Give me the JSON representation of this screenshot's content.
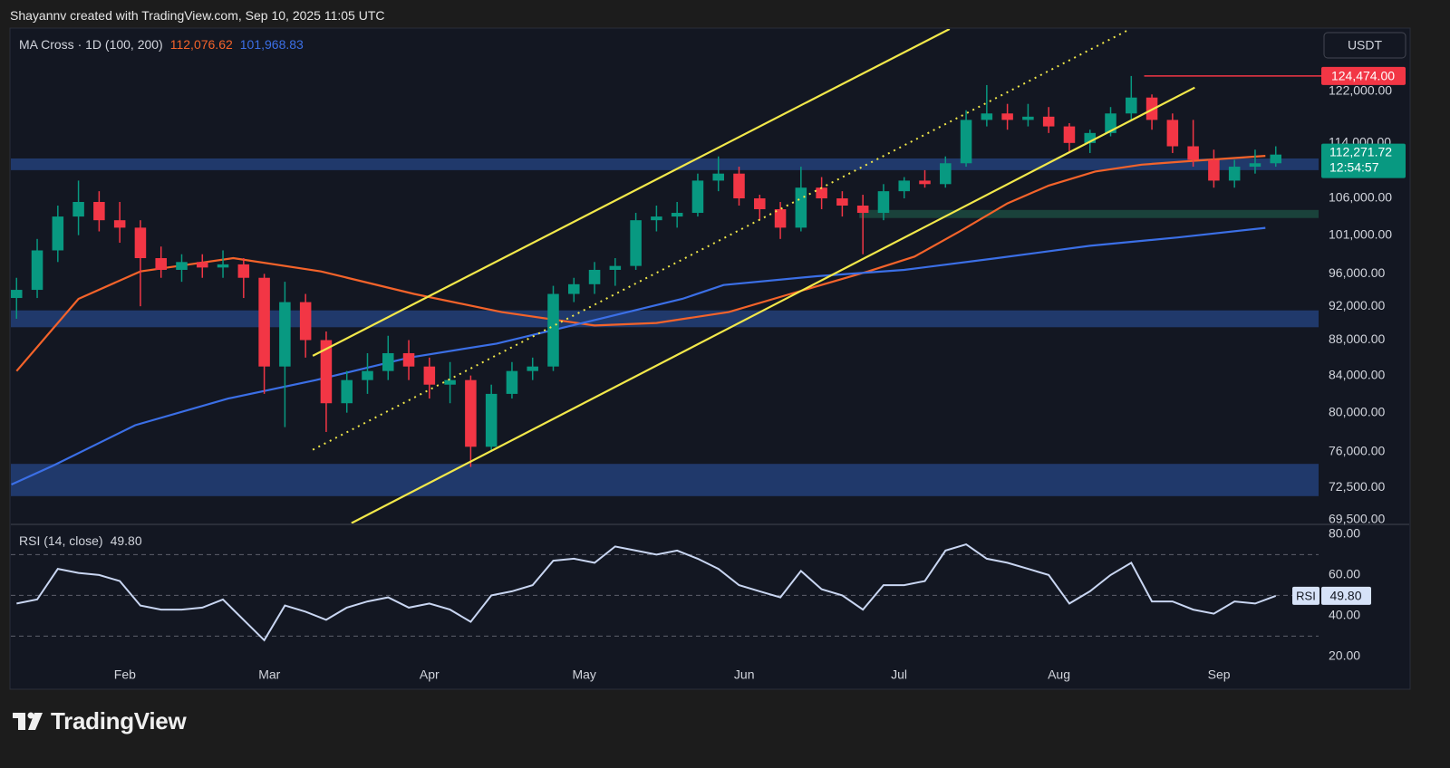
{
  "header": {
    "credit": "Shayannv created with TradingView.com, Sep 10, 2025 11:05 UTC",
    "currency": "USDT"
  },
  "footer": {
    "brand": "TradingView"
  },
  "chart_data": [
    {
      "type": "candlestick",
      "indicator": "MA Cross · 1D (100, 200)",
      "log_y": true,
      "xlim": [
        8.9,
        262.3
      ],
      "xticks": [
        {
          "value": 31,
          "label": "Feb"
        },
        {
          "value": 59,
          "label": "Mar"
        },
        {
          "value": 90,
          "label": "Apr"
        },
        {
          "value": 120,
          "label": "May"
        },
        {
          "value": 151,
          "label": "Jun"
        },
        {
          "value": 181,
          "label": "Jul"
        },
        {
          "value": 212,
          "label": "Aug"
        },
        {
          "value": 243,
          "label": "Sep"
        }
      ],
      "ylim": [
        69170,
        132400
      ],
      "yticks": [
        {
          "value": 122000,
          "label": "122,000.00"
        },
        {
          "value": 114000,
          "label": "114,000.00"
        },
        {
          "value": 106000,
          "label": "106,000.00"
        },
        {
          "value": 101000,
          "label": "101,000.00"
        },
        {
          "value": 96000,
          "label": "96,000.00"
        },
        {
          "value": 92000,
          "label": "92,000.00"
        },
        {
          "value": 88000,
          "label": "88,000.00"
        },
        {
          "value": 84000,
          "label": "84,000.00"
        },
        {
          "value": 80000,
          "label": "80,000.00"
        },
        {
          "value": 76000,
          "label": "76,000.00"
        },
        {
          "value": 72500,
          "label": "72,500.00"
        },
        {
          "value": 69500,
          "label": "69,500.00"
        }
      ],
      "up_color": "#089981",
      "down_color": "#f23645",
      "candles": [
        [
          10,
          93000,
          95500,
          90500,
          94000
        ],
        [
          14,
          94000,
          100500,
          93000,
          99000
        ],
        [
          18,
          99000,
          105000,
          97500,
          103500
        ],
        [
          22,
          103500,
          108500,
          101000,
          105500
        ],
        [
          26,
          105500,
          107000,
          101500,
          103000
        ],
        [
          30,
          103000,
          105500,
          100000,
          102000
        ],
        [
          34,
          102000,
          103000,
          92000,
          98000
        ],
        [
          38,
          98000,
          99500,
          95500,
          96500
        ],
        [
          42,
          96500,
          98500,
          95000,
          97500
        ],
        [
          46,
          97500,
          98500,
          95500,
          96800
        ],
        [
          50,
          96800,
          99000,
          95500,
          97200
        ],
        [
          54,
          97200,
          98000,
          93000,
          95500
        ],
        [
          58,
          95500,
          96000,
          82000,
          85000
        ],
        [
          62,
          85000,
          95000,
          78500,
          92500
        ],
        [
          66,
          92500,
          93500,
          86000,
          88000
        ],
        [
          70,
          88000,
          89000,
          78000,
          81000
        ],
        [
          74,
          81000,
          84500,
          80000,
          83500
        ],
        [
          78,
          83500,
          86500,
          82000,
          84500
        ],
        [
          82,
          84500,
          88500,
          83500,
          86500
        ],
        [
          86,
          86500,
          88000,
          83500,
          85000
        ],
        [
          90,
          85000,
          86000,
          81500,
          83000
        ],
        [
          94,
          83000,
          85500,
          81000,
          83500
        ],
        [
          98,
          83500,
          84000,
          74500,
          76500
        ],
        [
          102,
          76500,
          83000,
          76000,
          82000
        ],
        [
          106,
          82000,
          85500,
          81500,
          84500
        ],
        [
          110,
          84500,
          86000,
          83500,
          85000
        ],
        [
          114,
          85000,
          94500,
          84500,
          93500
        ],
        [
          118,
          93500,
          95500,
          92500,
          94700
        ],
        [
          122,
          94700,
          97500,
          93500,
          96500
        ],
        [
          126,
          96500,
          98000,
          94500,
          97000
        ],
        [
          130,
          97000,
          104000,
          96500,
          103000
        ],
        [
          134,
          103000,
          105000,
          101500,
          103500
        ],
        [
          138,
          103500,
          105500,
          102000,
          104000
        ],
        [
          142,
          104000,
          109500,
          103500,
          108500
        ],
        [
          146,
          108500,
          112000,
          107000,
          109500
        ],
        [
          150,
          109500,
          110500,
          105000,
          106000
        ],
        [
          154,
          106000,
          106500,
          103000,
          104500
        ],
        [
          158,
          104500,
          105500,
          100500,
          102000
        ],
        [
          162,
          102000,
          110500,
          101500,
          107500
        ],
        [
          166,
          107500,
          109000,
          104500,
          106000
        ],
        [
          170,
          106000,
          107000,
          103500,
          105000
        ],
        [
          174,
          105000,
          106500,
          98500,
          104000
        ],
        [
          178,
          104000,
          108000,
          103000,
          107000
        ],
        [
          182,
          107000,
          109000,
          106000,
          108500
        ],
        [
          186,
          108500,
          110000,
          107500,
          108000
        ],
        [
          190,
          108000,
          112000,
          107500,
          111000
        ],
        [
          194,
          111000,
          119000,
          110500,
          117500
        ],
        [
          198,
          117500,
          123000,
          116500,
          118500
        ],
        [
          202,
          118500,
          120000,
          116000,
          117500
        ],
        [
          206,
          117500,
          120000,
          116500,
          118000
        ],
        [
          210,
          118000,
          119500,
          115500,
          116500
        ],
        [
          214,
          116500,
          117000,
          112500,
          114000
        ],
        [
          218,
          114000,
          116000,
          112500,
          115500
        ],
        [
          222,
          115500,
          119500,
          115000,
          118500
        ],
        [
          226,
          118500,
          124474,
          117500,
          121000
        ],
        [
          230,
          121000,
          121500,
          116000,
          117500
        ],
        [
          234,
          117500,
          118500,
          112500,
          113500
        ],
        [
          238,
          113500,
          117500,
          110500,
          111500
        ],
        [
          242,
          111500,
          113000,
          107500,
          108500
        ],
        [
          246,
          108500,
          111500,
          107500,
          110500
        ],
        [
          250,
          110500,
          113000,
          109500,
          111000
        ],
        [
          254,
          111000,
          113500,
          110500,
          112271.72
        ]
      ],
      "series": [
        {
          "color": "#f4632a",
          "legend_value": "112,076.62",
          "x": [
            10,
            22,
            34,
            52,
            69,
            87,
            104,
            122,
            134,
            148,
            160,
            175,
            184,
            193,
            202,
            210,
            219,
            228,
            237,
            252
          ],
          "values": [
            84500,
            92900,
            96300,
            98000,
            96300,
            93500,
            91300,
            89700,
            90000,
            91300,
            93500,
            96300,
            98200,
            101600,
            105300,
            107800,
            109800,
            110800,
            111300,
            112076.62
          ]
        },
        {
          "color": "#3b6fe6",
          "legend_value": "101,968.83",
          "x": [
            9,
            17,
            33,
            51,
            68,
            86,
            103,
            121,
            139,
            147,
            165,
            182,
            200,
            218,
            235,
            252
          ],
          "values": [
            72800,
            74600,
            78700,
            81500,
            83500,
            86000,
            87600,
            90200,
            92900,
            94600,
            95700,
            96500,
            98000,
            99600,
            100700,
            101968.83
          ]
        }
      ],
      "zones": [
        {
          "color": "#233f78",
          "range": [
            110000,
            111700
          ]
        },
        {
          "color": "#233f78",
          "range": [
            89500,
            91500
          ]
        },
        {
          "color": "#233f78",
          "range": [
            71700,
            74800
          ]
        },
        {
          "color": "#1c4a40",
          "range": [
            103300,
            104400
          ],
          "from": 173.3
        }
      ],
      "trendlines": [
        {
          "color": "#f2e84a",
          "dashed": false,
          "x": [
            67.4,
            190.8
          ],
          "y": [
            86200,
            132400
          ]
        },
        {
          "color": "#f2e84a",
          "dashed": false,
          "x": [
            74.9,
            238.3
          ],
          "y": [
            69200,
            122600
          ]
        },
        {
          "color": "#f2e84a",
          "dashed": true,
          "x": [
            67.4,
            225.8
          ],
          "y": [
            76200,
            132400
          ]
        }
      ],
      "peak_line": {
        "value": 124474,
        "label": "124,474.00",
        "x": 228.5,
        "color": "#f23645"
      },
      "last_price": {
        "value": 112271.72,
        "label": "112,271.72",
        "countdown": "12:54:57",
        "color": "#089981"
      }
    },
    {
      "type": "line",
      "title": "RSI (14, close)",
      "value_label": "49.80",
      "tag": "RSI",
      "color": "#c9d6f2",
      "ylim": [
        4.4,
        84.4
      ],
      "yticks": [
        {
          "value": 80,
          "label": "80.00"
        },
        {
          "value": 60,
          "label": "60.00"
        },
        {
          "value": 40,
          "label": "40.00"
        },
        {
          "value": 20,
          "label": "20.00"
        }
      ],
      "bands": [
        70,
        50,
        30
      ],
      "x": [
        10,
        14,
        18,
        22,
        26,
        30,
        34,
        38,
        42,
        46,
        50,
        54,
        58,
        62,
        66,
        70,
        74,
        78,
        82,
        86,
        90,
        94,
        98,
        102,
        106,
        110,
        114,
        118,
        122,
        126,
        130,
        134,
        138,
        142,
        146,
        150,
        154,
        158,
        162,
        166,
        170,
        174,
        178,
        182,
        186,
        190,
        194,
        198,
        202,
        206,
        210,
        214,
        218,
        222,
        226,
        230,
        234,
        238,
        242,
        246,
        250,
        254
      ],
      "values": [
        46,
        48,
        63,
        61,
        60,
        57,
        45,
        43,
        43,
        44,
        48,
        38,
        28,
        45,
        42,
        38,
        44,
        47,
        49,
        44,
        46,
        43,
        37,
        50,
        52,
        55,
        67,
        68,
        66,
        74,
        72,
        70,
        72,
        68,
        63,
        55,
        52,
        49,
        62,
        53,
        50,
        43,
        55,
        55,
        57,
        72,
        75,
        68,
        66,
        63,
        60,
        46,
        52,
        60,
        66,
        47,
        47,
        43,
        41,
        47,
        46,
        49.8
      ]
    }
  ]
}
